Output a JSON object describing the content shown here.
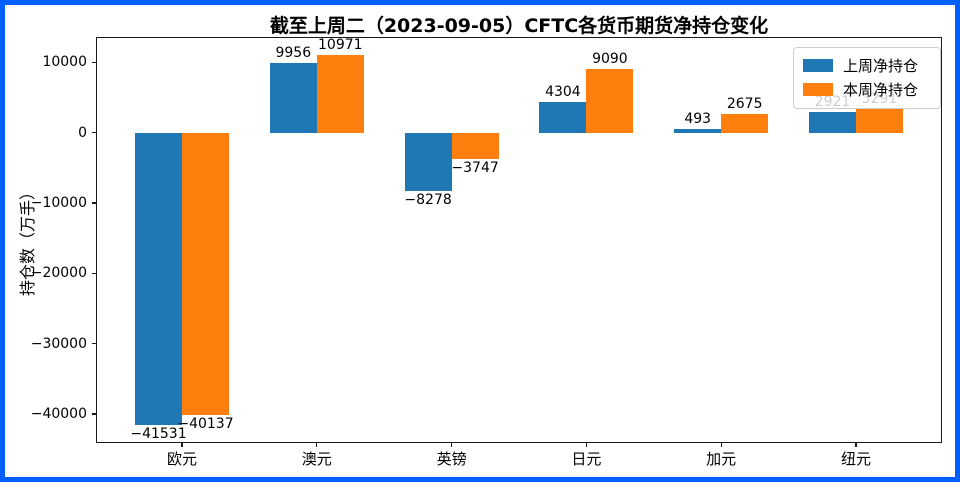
{
  "window": {
    "frame_color": "#0060ff",
    "background_color": "#ffffff",
    "plot_border_color": "#1a1a1a"
  },
  "chart_data": {
    "type": "bar",
    "title": "截至上周二（2023-09-05）CFTC各货币期货净持仓变化",
    "ylabel": "持仓数（万手）",
    "xlabel": "",
    "categories": [
      "欧元",
      "澳元",
      "英镑",
      "日元",
      "加元",
      "纽元"
    ],
    "series": [
      {
        "name": "上周净持仓",
        "color": "#1f77b4",
        "values": [
          -41531,
          9956,
          -8278,
          4304,
          493,
          2921
        ]
      },
      {
        "name": "本周净持仓",
        "color": "#ff7f0e",
        "values": [
          -40137,
          10971,
          -3747,
          9090,
          2675,
          3291
        ]
      }
    ],
    "bar_labels": [
      "−41531",
      "−40137",
      "9956",
      "10971",
      "−8278",
      "−3747",
      "4304",
      "9090",
      "493",
      "2675",
      "2921",
      "3291"
    ],
    "ylim": [
      -44150,
      13600
    ],
    "yticks": [
      10000,
      0,
      -10000,
      -20000,
      -30000,
      -40000
    ],
    "ytick_labels": [
      "10000",
      "0",
      "−10000",
      "−20000",
      "−30000",
      "−40000"
    ],
    "grid": false,
    "legend_position": "upper right",
    "value_labels_shown": true
  }
}
